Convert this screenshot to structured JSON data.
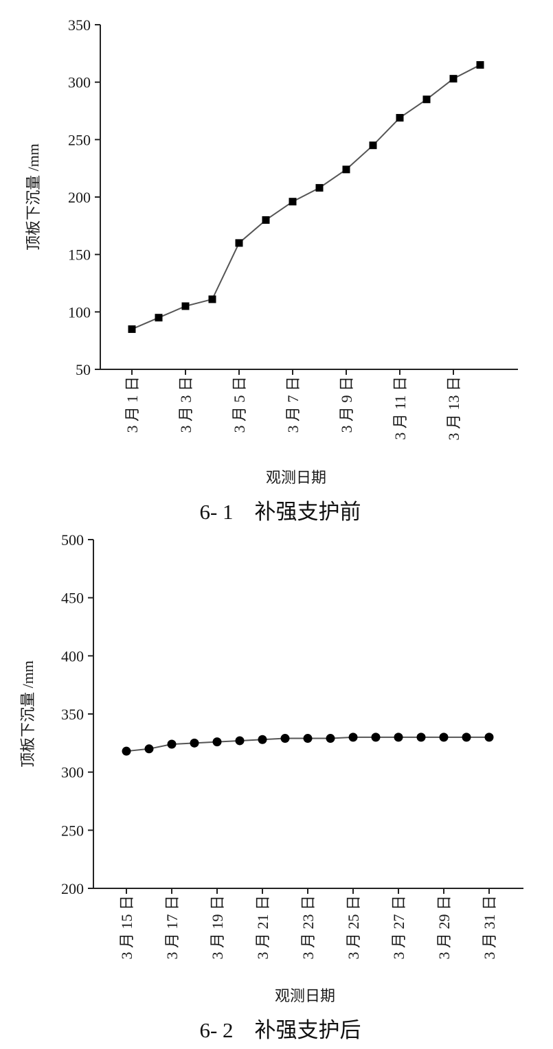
{
  "chart_data": [
    {
      "type": "line",
      "caption": "6- 1　补强支护前",
      "xlabel": "观测日期",
      "ylabel": "顶板下沉量 /mm",
      "ylim": [
        50,
        350
      ],
      "yticks": [
        "50",
        "100",
        "150",
        "200",
        "250",
        "300",
        "350"
      ],
      "x_tick_labels": [
        "3 月 1 日",
        "3 月 3 日",
        "3 月 5 日",
        "3 月 7 日",
        "3 月 9 日",
        "3 月 11 日",
        "3 月 13 日"
      ],
      "marker": "square",
      "series": [
        {
          "x": [
            "3月1日",
            "3月2日",
            "3月3日",
            "3月4日",
            "3月5日",
            "3月6日",
            "3月7日",
            "3月8日",
            "3月9日",
            "3月10日",
            "3月11日",
            "3月12日",
            "3月13日",
            "3月14日"
          ],
          "values": [
            85,
            95,
            105,
            111,
            160,
            180,
            196,
            208,
            224,
            245,
            269,
            285,
            303,
            315
          ]
        }
      ],
      "grid": false
    },
    {
      "type": "line",
      "caption": "6- 2　补强支护后",
      "xlabel": "观测日期",
      "ylabel": "顶板下沉量 /mm",
      "ylim": [
        200,
        500
      ],
      "yticks": [
        "200",
        "250",
        "300",
        "350",
        "400",
        "450",
        "500"
      ],
      "x_tick_labels": [
        "3 月 15 日",
        "3 月 17 日",
        "3 月 19 日",
        "3 月 21 日",
        "3 月 23 日",
        "3 月 25 日",
        "3 月 27 日",
        "3 月 29 日",
        "3 月 31 日"
      ],
      "marker": "circle",
      "series": [
        {
          "x": [
            "3月15日",
            "3月16日",
            "3月17日",
            "3月18日",
            "3月19日",
            "3月20日",
            "3月21日",
            "3月22日",
            "3月23日",
            "3月24日",
            "3月25日",
            "3月26日",
            "3月27日",
            "3月28日",
            "3月29日",
            "3月30日",
            "3月31日"
          ],
          "values": [
            318,
            320,
            324,
            325,
            326,
            327,
            328,
            329,
            329,
            329,
            330,
            330,
            330,
            330,
            330,
            330,
            330
          ]
        }
      ],
      "grid": false
    }
  ]
}
